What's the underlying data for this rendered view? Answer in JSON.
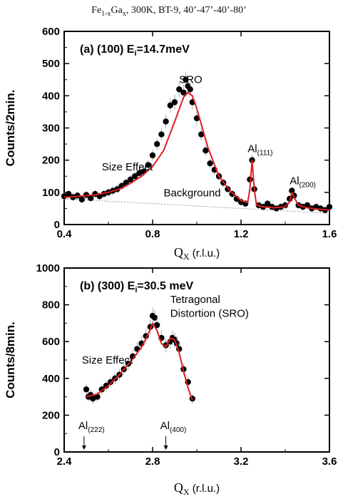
{
  "header": {
    "base_main": "Fe",
    "base_sub": "1-x",
    "base_mid": "Ga",
    "base_sub2": "x",
    "rest": ", 300K, BT-9, 40’-47’-40’-80’"
  },
  "chart_data": [
    {
      "type": "scatter",
      "panel_label": "(a)",
      "title_hkl": "(100)",
      "title_energy_prefix": "E",
      "title_energy_sub": "i",
      "title_energy_value": "=14.7meV",
      "xlabel_main": "Q",
      "xlabel_sub": "X",
      "xlabel_unit": " (r.l.u.)",
      "ylabel": "Counts/2min.",
      "xlim": [
        0.4,
        1.6
      ],
      "ylim": [
        0,
        600
      ],
      "xticks": [
        0.4,
        0.8,
        1.2,
        1.6
      ],
      "xtick_labels": [
        "0.4",
        "0.8",
        "1.2",
        "1.6"
      ],
      "yticks": [
        0,
        100,
        200,
        300,
        400,
        500,
        600
      ],
      "ytick_labels": [
        "0",
        "100",
        "200",
        "300",
        "400",
        "500",
        "600"
      ],
      "colors": {
        "points": "#000000",
        "fit": "#e02020",
        "background": "#999999"
      },
      "annotations": [
        {
          "text": "SRO",
          "x": 0.92,
          "y": 440
        },
        {
          "text": "Size Effect",
          "x": 0.57,
          "y": 168
        },
        {
          "text": "Background",
          "x": 0.85,
          "y": 88
        },
        {
          "text": "Al",
          "sub": "(111)",
          "x": 1.23,
          "y": 225
        },
        {
          "text": "Al",
          "sub": "(200)",
          "x": 1.42,
          "y": 125
        }
      ],
      "series": [
        {
          "kind": "points",
          "x": [
            0.4,
            0.42,
            0.44,
            0.46,
            0.48,
            0.5,
            0.52,
            0.54,
            0.56,
            0.58,
            0.6,
            0.62,
            0.64,
            0.66,
            0.68,
            0.7,
            0.72,
            0.74,
            0.76,
            0.78,
            0.8,
            0.82,
            0.84,
            0.86,
            0.88,
            0.9,
            0.92,
            0.94,
            0.95,
            0.96,
            0.97,
            0.98,
            1.0,
            1.02,
            1.04,
            1.06,
            1.08,
            1.1,
            1.12,
            1.14,
            1.16,
            1.18,
            1.2,
            1.22,
            1.24,
            1.25,
            1.26,
            1.28,
            1.3,
            1.32,
            1.34,
            1.36,
            1.38,
            1.4,
            1.42,
            1.43,
            1.44,
            1.46,
            1.48,
            1.5,
            1.52,
            1.54,
            1.56,
            1.58,
            1.6
          ],
          "y": [
            88,
            95,
            85,
            90,
            78,
            92,
            82,
            95,
            88,
            95,
            100,
            105,
            110,
            120,
            130,
            140,
            150,
            160,
            165,
            185,
            215,
            250,
            280,
            320,
            370,
            380,
            420,
            410,
            450,
            430,
            420,
            380,
            330,
            280,
            230,
            190,
            170,
            150,
            130,
            110,
            95,
            80,
            70,
            65,
            140,
            200,
            110,
            60,
            55,
            65,
            55,
            50,
            55,
            60,
            80,
            105,
            90,
            60,
            55,
            60,
            50,
            55,
            50,
            45,
            55
          ]
        },
        {
          "kind": "fit",
          "x": [
            0.4,
            0.45,
            0.5,
            0.55,
            0.6,
            0.65,
            0.7,
            0.75,
            0.8,
            0.85,
            0.9,
            0.94,
            0.96,
            0.98,
            1.0,
            1.05,
            1.1,
            1.15,
            1.2,
            1.23,
            1.24,
            1.25,
            1.26,
            1.27,
            1.3,
            1.35,
            1.4,
            1.42,
            1.43,
            1.44,
            1.46,
            1.5,
            1.55,
            1.6
          ],
          "y": [
            85,
            87,
            90,
            93,
            100,
            110,
            128,
            150,
            180,
            230,
            320,
            395,
            410,
            400,
            360,
            240,
            150,
            105,
            75,
            68,
            110,
            200,
            110,
            60,
            55,
            52,
            55,
            70,
            100,
            85,
            60,
            52,
            48,
            45
          ]
        },
        {
          "kind": "background",
          "x": [
            0.4,
            1.6
          ],
          "y": [
            80,
            35
          ]
        }
      ]
    },
    {
      "type": "scatter",
      "panel_label": "(b)",
      "title_hkl": "(300)",
      "title_energy_prefix": "E",
      "title_energy_sub": "i",
      "title_energy_value": "=30.5 meV",
      "xlabel_main": "Q",
      "xlabel_sub": "X",
      "xlabel_unit": " (r.l.u.)",
      "ylabel": "Counts/8min.",
      "xlim": [
        2.4,
        3.6
      ],
      "ylim": [
        0,
        1000
      ],
      "xticks": [
        2.4,
        2.8,
        3.2,
        3.6
      ],
      "xtick_labels": [
        "2.4",
        "2.8",
        "3.2",
        "3.6"
      ],
      "yticks": [
        0,
        200,
        400,
        600,
        800,
        1000
      ],
      "ytick_labels": [
        "0",
        "200",
        "400",
        "600",
        "800",
        "1000"
      ],
      "colors": {
        "points": "#000000",
        "fit": "#e02020"
      },
      "annotations": [
        {
          "text": "Size Effect",
          "x": 2.48,
          "y": 480
        },
        {
          "text": "Tetragonal",
          "x": 2.88,
          "y": 810
        },
        {
          "text": "Distortion (SRO)",
          "x": 2.88,
          "y": 735
        }
      ],
      "arrows": [
        {
          "text": "Al",
          "sub": "(222)",
          "x": 2.49
        },
        {
          "text": "Al",
          "sub": "(400)",
          "x": 2.86
        }
      ],
      "series": [
        {
          "kind": "points",
          "x": [
            2.5,
            2.51,
            2.52,
            2.53,
            2.55,
            2.57,
            2.59,
            2.61,
            2.63,
            2.65,
            2.67,
            2.69,
            2.71,
            2.73,
            2.75,
            2.77,
            2.79,
            2.8,
            2.81,
            2.82,
            2.84,
            2.86,
            2.88,
            2.89,
            2.9,
            2.91,
            2.92,
            2.94,
            2.96,
            2.98
          ],
          "y": [
            340,
            300,
            310,
            290,
            300,
            340,
            360,
            380,
            400,
            420,
            450,
            480,
            520,
            560,
            590,
            630,
            680,
            740,
            730,
            690,
            620,
            580,
            600,
            620,
            610,
            590,
            560,
            450,
            380,
            290
          ]
        },
        {
          "kind": "fit",
          "x": [
            2.5,
            2.55,
            2.6,
            2.65,
            2.7,
            2.75,
            2.78,
            2.8,
            2.82,
            2.84,
            2.86,
            2.88,
            2.9,
            2.92,
            2.94,
            2.96,
            2.98
          ],
          "y": [
            300,
            315,
            360,
            420,
            490,
            570,
            640,
            700,
            660,
            590,
            570,
            620,
            610,
            540,
            440,
            350,
            280
          ]
        }
      ]
    }
  ]
}
